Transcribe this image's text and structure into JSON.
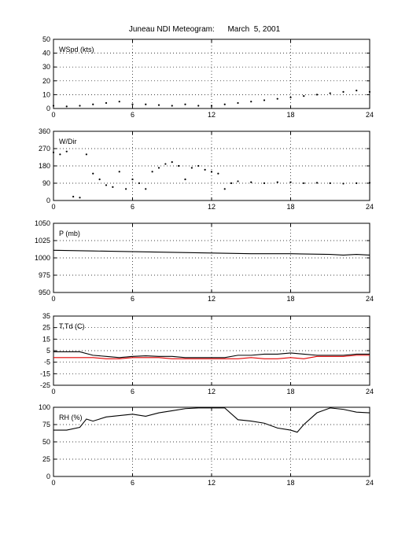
{
  "title": {
    "label": "Juneau NDI Meteogram:",
    "date": "March  5, 2001"
  },
  "colors": {
    "axis": "#000000",
    "grid": "#000000",
    "series_black": "#000000",
    "series_red": "#e00000"
  },
  "chart_data": [
    {
      "type": "scatter",
      "label": "WSpd (kts)",
      "x_ticks": [
        0,
        6,
        12,
        18,
        24
      ],
      "xlim": [
        0,
        24
      ],
      "ylim": [
        0,
        50
      ],
      "y_ticks": [
        0,
        10,
        20,
        30,
        40,
        50
      ],
      "grid": true,
      "series": [
        {
          "color": "#000000",
          "points": [
            [
              0,
              2
            ],
            [
              1,
              1.5
            ],
            [
              2,
              2
            ],
            [
              3,
              3
            ],
            [
              4,
              4
            ],
            [
              5,
              5
            ],
            [
              6,
              3
            ],
            [
              7,
              3
            ],
            [
              8,
              2.5
            ],
            [
              9,
              2
            ],
            [
              10,
              3
            ],
            [
              11,
              2
            ],
            [
              12,
              2
            ],
            [
              13,
              3
            ],
            [
              14,
              4
            ],
            [
              15,
              5
            ],
            [
              16,
              6
            ],
            [
              17,
              7
            ],
            [
              18,
              8
            ],
            [
              19,
              9
            ],
            [
              20,
              10
            ],
            [
              21,
              11
            ],
            [
              22,
              12
            ],
            [
              23,
              13
            ],
            [
              24,
              12
            ]
          ]
        }
      ]
    },
    {
      "type": "scatter",
      "label": "W/Dir",
      "x_ticks": [
        0,
        6,
        12,
        18,
        24
      ],
      "xlim": [
        0,
        24
      ],
      "ylim": [
        0,
        360
      ],
      "y_ticks": [
        0,
        90,
        180,
        270,
        360
      ],
      "grid": true,
      "series": [
        {
          "color": "#000000",
          "points": [
            [
              0,
              250
            ],
            [
              0.5,
              240
            ],
            [
              1,
              255
            ],
            [
              1.5,
              20
            ],
            [
              2,
              15
            ],
            [
              2.5,
              240
            ],
            [
              3,
              140
            ],
            [
              3.5,
              110
            ],
            [
              4,
              80
            ],
            [
              4.5,
              70
            ],
            [
              5,
              150
            ],
            [
              5.5,
              60
            ],
            [
              6,
              110
            ],
            [
              6.5,
              90
            ],
            [
              7,
              60
            ],
            [
              7.5,
              150
            ],
            [
              8,
              170
            ],
            [
              8.5,
              190
            ],
            [
              9,
              200
            ],
            [
              9.5,
              180
            ],
            [
              10,
              110
            ],
            [
              10.5,
              170
            ],
            [
              11,
              180
            ],
            [
              11.5,
              160
            ],
            [
              12,
              150
            ],
            [
              12.5,
              140
            ],
            [
              13,
              60
            ],
            [
              13.5,
              90
            ],
            [
              14,
              100
            ],
            [
              15,
              95
            ],
            [
              16,
              90
            ],
            [
              17,
              95
            ],
            [
              18,
              95
            ],
            [
              19,
              90
            ],
            [
              20,
              92
            ],
            [
              21,
              90
            ],
            [
              22,
              88
            ],
            [
              23,
              90
            ],
            [
              24,
              92
            ]
          ]
        }
      ]
    },
    {
      "type": "line",
      "label": "P (mb)",
      "x_ticks": [
        0,
        6,
        12,
        18,
        24
      ],
      "xlim": [
        0,
        24
      ],
      "ylim": [
        950,
        1050
      ],
      "y_ticks": [
        950,
        975,
        1000,
        1025,
        1050
      ],
      "grid": true,
      "series": [
        {
          "color": "#000000",
          "points": [
            [
              0,
              1011
            ],
            [
              3,
              1010
            ],
            [
              6,
              1009
            ],
            [
              9,
              1008
            ],
            [
              12,
              1007
            ],
            [
              15,
              1006
            ],
            [
              18,
              1006
            ],
            [
              21,
              1005
            ],
            [
              22,
              1004
            ],
            [
              23,
              1005
            ],
            [
              24,
              1004
            ]
          ]
        }
      ]
    },
    {
      "type": "line",
      "label": "T,Td (C)",
      "x_ticks": [
        0,
        6,
        12,
        18,
        24
      ],
      "xlim": [
        0,
        24
      ],
      "ylim": [
        -25,
        35
      ],
      "y_ticks": [
        -25,
        -15,
        -5,
        5,
        15,
        25,
        35
      ],
      "grid": true,
      "series": [
        {
          "color": "#000000",
          "points": [
            [
              0,
              4
            ],
            [
              1,
              4
            ],
            [
              2,
              4
            ],
            [
              3,
              1
            ],
            [
              4,
              0
            ],
            [
              5,
              -1
            ],
            [
              6,
              0
            ],
            [
              7,
              0.5
            ],
            [
              8,
              0
            ],
            [
              9,
              0
            ],
            [
              10,
              -1
            ],
            [
              11,
              -1
            ],
            [
              12,
              -1
            ],
            [
              13,
              -1
            ],
            [
              14,
              1
            ],
            [
              15,
              1
            ],
            [
              16,
              2
            ],
            [
              17,
              2
            ],
            [
              18,
              3
            ],
            [
              19,
              2
            ],
            [
              20,
              1
            ],
            [
              21,
              1
            ],
            [
              22,
              1
            ],
            [
              23,
              2
            ],
            [
              24,
              2
            ]
          ]
        },
        {
          "color": "#e00000",
          "points": [
            [
              0,
              -1
            ],
            [
              1,
              -1
            ],
            [
              2,
              -1
            ],
            [
              3,
              -1
            ],
            [
              4,
              -2
            ],
            [
              5,
              -2
            ],
            [
              6,
              -1
            ],
            [
              7,
              -1
            ],
            [
              8,
              -1
            ],
            [
              9,
              -2
            ],
            [
              10,
              -2
            ],
            [
              11,
              -2
            ],
            [
              12,
              -2
            ],
            [
              13,
              -2
            ],
            [
              14,
              -2
            ],
            [
              15,
              -1
            ],
            [
              16,
              -2
            ],
            [
              17,
              -2
            ],
            [
              18,
              -1
            ],
            [
              19,
              -2
            ],
            [
              20,
              0
            ],
            [
              21,
              0
            ],
            [
              22,
              0
            ],
            [
              23,
              1
            ],
            [
              24,
              1
            ]
          ]
        }
      ]
    },
    {
      "type": "line",
      "label": "RH (%)",
      "x_ticks": [
        0,
        6,
        12,
        18,
        24
      ],
      "xlim": [
        0,
        24
      ],
      "ylim": [
        0,
        100
      ],
      "y_ticks": [
        0,
        25,
        50,
        75,
        100
      ],
      "grid": true,
      "series": [
        {
          "color": "#000000",
          "points": [
            [
              0,
              67
            ],
            [
              1,
              67
            ],
            [
              2,
              71
            ],
            [
              2.5,
              83
            ],
            [
              3,
              80
            ],
            [
              4,
              86
            ],
            [
              5,
              88
            ],
            [
              6,
              90
            ],
            [
              7,
              87
            ],
            [
              8,
              92
            ],
            [
              9,
              95
            ],
            [
              10,
              98
            ],
            [
              11,
              99
            ],
            [
              12,
              99
            ],
            [
              13,
              99
            ],
            [
              14,
              82
            ],
            [
              15,
              80
            ],
            [
              16,
              77
            ],
            [
              17,
              70
            ],
            [
              18,
              67
            ],
            [
              18.5,
              64
            ],
            [
              19,
              75
            ],
            [
              20,
              92
            ],
            [
              21,
              99
            ],
            [
              22,
              97
            ],
            [
              23,
              93
            ],
            [
              24,
              92
            ]
          ]
        }
      ]
    }
  ]
}
